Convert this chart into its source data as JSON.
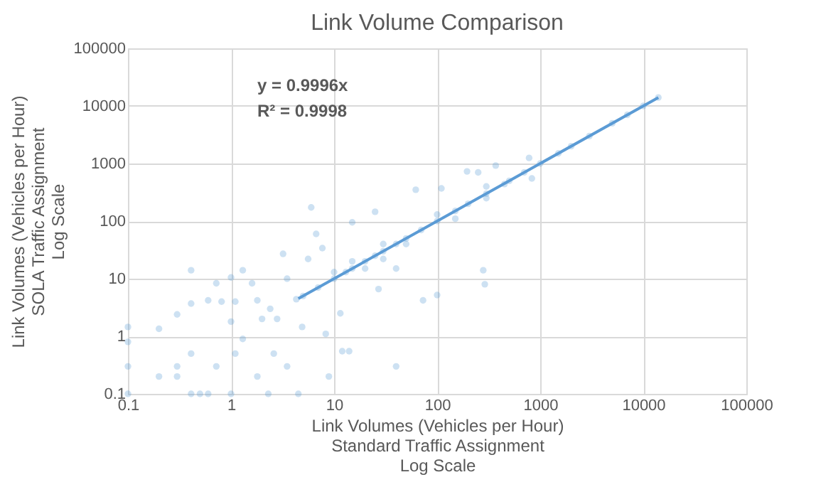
{
  "chart_data": {
    "type": "scatter",
    "title": "Link Volume Comparison",
    "xlabel": "Link Volumes (Vehicles per Hour)\nStandard Traffic Assignment\nLog Scale",
    "ylabel": "Link Volumes (Vehicles per Hour)\nSOLA Traffic Assignment\nLog Scale",
    "log": "xy",
    "grid": true,
    "xlim": [
      0.1,
      100000
    ],
    "xticks": [
      0.1,
      1,
      10,
      100,
      1000,
      10000,
      100000
    ],
    "ylim": [
      0.1,
      100000
    ],
    "yticks": [
      0.1,
      1,
      10,
      100,
      1000,
      10000,
      100000
    ],
    "annotations": [
      "y = 0.9996x",
      "R² = 0.9998"
    ],
    "series": [
      {
        "marker": "circle",
        "color": "#5b9bd5",
        "x": [
          0.1,
          0.1,
          0.1,
          0.1,
          0.2,
          0.2,
          0.3,
          0.3,
          0.3,
          0.41,
          0.41,
          0.41,
          0.41,
          0.5,
          0.6,
          0.6,
          0.72,
          0.81,
          0.72,
          1,
          1,
          1,
          1.1,
          1.1,
          1.3,
          1.3,
          1.6,
          1.8,
          1.8,
          2,
          2.3,
          2.6,
          2.4,
          2.8,
          3.2,
          3.5,
          3.5,
          4.5,
          4.3,
          4.9,
          5.6,
          6,
          6.7,
          7.7,
          8.3,
          8.9,
          11.5,
          12,
          14,
          15,
          25,
          27,
          40,
          40,
          62,
          73,
          100,
          110,
          195,
          250,
          280,
          290,
          370,
          450,
          830,
          780,
          5,
          7,
          10,
          13,
          15,
          20,
          25,
          30,
          40,
          50,
          70,
          100,
          150,
          200,
          300,
          500,
          700,
          1000,
          1500,
          2000,
          3000,
          5000,
          7000,
          10000,
          14000,
          10,
          20,
          30,
          50,
          100,
          150,
          300,
          300,
          30,
          15
        ],
        "values": [
          0.1,
          0.3,
          0.8,
          1.45,
          1.35,
          0.2,
          0.3,
          0.2,
          2.4,
          14,
          3.7,
          0.5,
          0.1,
          0.1,
          0.1,
          4.2,
          8.3,
          4,
          0.3,
          10.5,
          1.8,
          0.1,
          4,
          0.5,
          14,
          0.9,
          8.3,
          4.2,
          0.2,
          2,
          0.1,
          0.5,
          3,
          2,
          27,
          10,
          0.3,
          0.1,
          4.4,
          1.45,
          22,
          173,
          60,
          34,
          1.1,
          0.2,
          2.5,
          0.55,
          0.55,
          95,
          145,
          6.6,
          15,
          0.3,
          350,
          4.2,
          5.2,
          370,
          730,
          700,
          14,
          8,
          920,
          440,
          550,
          1250,
          5,
          7,
          10,
          13,
          15,
          20,
          25,
          30,
          40,
          50,
          70,
          100,
          150,
          200,
          300,
          500,
          700,
          1000,
          1500,
          2000,
          3000,
          5000,
          7000,
          10000,
          14000,
          13,
          15,
          40,
          40,
          130,
          110,
          400,
          250,
          22,
          20
        ]
      },
      {
        "type": "line",
        "color": "#5b9bd5",
        "x": [
          4.5,
          14000
        ],
        "values": [
          4.498,
          13994.4
        ]
      }
    ]
  }
}
